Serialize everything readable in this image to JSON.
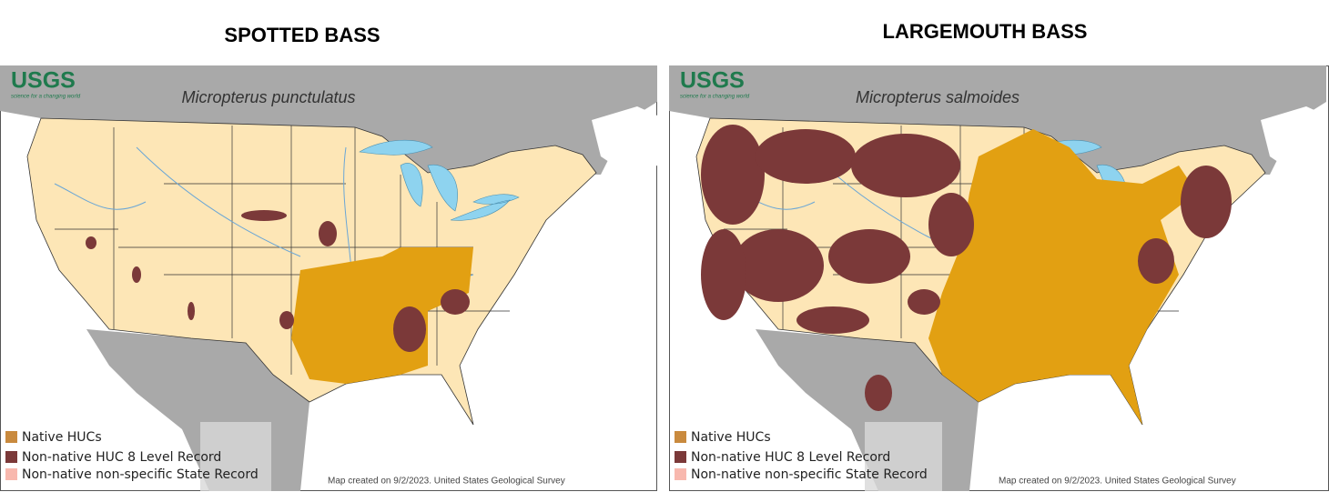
{
  "panels": [
    {
      "title": "SPOTTED BASS",
      "logo": "USGS",
      "logo_tagline": "science for a changing world",
      "species": "Micropterus punctulatus",
      "legend": [
        {
          "label": "Native HUCs",
          "color": "#c98a3e"
        },
        {
          "label": "Non-native HUC 8 Level Record",
          "color": "#7b3939"
        },
        {
          "label": "Non-native non-specific State Record",
          "color": "#f8b8ae"
        }
      ],
      "credit": "Map created on 9/2/2023. United States Geological Survey"
    },
    {
      "title": "LARGEMOUTH BASS",
      "logo": "USGS",
      "logo_tagline": "science for a changing world",
      "species": "Micropterus salmoides",
      "legend": [
        {
          "label": "Native HUCs",
          "color": "#c98a3e"
        },
        {
          "label": "Non-native HUC 8 Level Record",
          "color": "#7b3939"
        },
        {
          "label": "Non-native non-specific State Record",
          "color": "#f8b8ae"
        }
      ],
      "credit": "Map created on 9/2/2023. United States Geological Survey"
    }
  ]
}
